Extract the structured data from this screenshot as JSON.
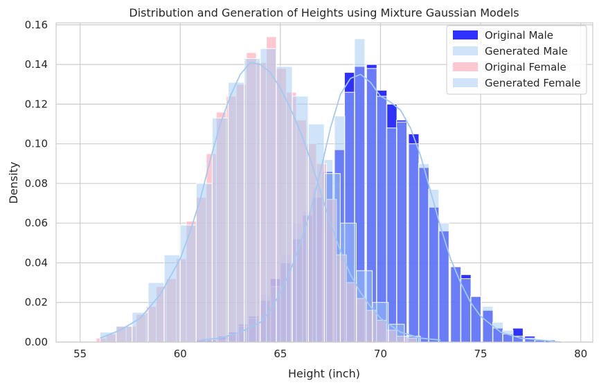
{
  "chart_data": {
    "type": "histogram",
    "title": "Distribution and Generation of Heights using Mixture Gaussian Models",
    "xlabel": "Height (inch)",
    "ylabel": "Density",
    "xlim": [
      53.8,
      80.6
    ],
    "ylim": [
      0,
      0.161
    ],
    "xticks": [
      55,
      60,
      65,
      70,
      75,
      80
    ],
    "yticks": [
      0.0,
      0.02,
      0.04,
      0.06,
      0.08,
      0.1,
      0.12,
      0.14,
      0.16
    ],
    "ytick_labels": [
      "0.00",
      "0.02",
      "0.04",
      "0.06",
      "0.08",
      "0.10",
      "0.12",
      "0.14",
      "0.16"
    ],
    "grid": true,
    "legend_position": "top-right",
    "legend": [
      {
        "label": "Original Male",
        "series": "original_male"
      },
      {
        "label": "Generated Male",
        "series": "generated_male"
      },
      {
        "label": "Original Female",
        "series": "original_female"
      },
      {
        "label": "Generated Female",
        "series": "generated_female"
      }
    ],
    "colors": {
      "original_male": "#1a1aff",
      "generated_male": "#a1c9f4",
      "original_female": "#ffb6c1",
      "generated_female": "#a1c9f4",
      "kde_line": "#a1c9f4",
      "grid": "#cccccc",
      "frame": "#cccccc"
    },
    "series": [
      {
        "name": "Original Male",
        "key": "original_male",
        "bin_width": 0.52,
        "bins": [
          [
            60.3,
            0.0
          ],
          [
            60.8,
            0.001
          ],
          [
            61.3,
            0.001
          ],
          [
            61.9,
            0.003
          ],
          [
            62.4,
            0.005
          ],
          [
            62.9,
            0.009
          ],
          [
            63.4,
            0.013
          ],
          [
            64.0,
            0.021
          ],
          [
            64.5,
            0.032
          ],
          [
            65.0,
            0.04
          ],
          [
            65.6,
            0.052
          ],
          [
            66.1,
            0.064
          ],
          [
            66.6,
            0.073
          ],
          [
            67.1,
            0.086
          ],
          [
            67.7,
            0.097
          ],
          [
            68.2,
            0.136
          ],
          [
            68.7,
            0.139
          ],
          [
            69.3,
            0.14
          ],
          [
            69.8,
            0.127
          ],
          [
            70.3,
            0.12
          ],
          [
            70.8,
            0.112
          ],
          [
            71.4,
            0.105
          ],
          [
            71.9,
            0.088
          ],
          [
            72.4,
            0.068
          ],
          [
            72.9,
            0.056
          ],
          [
            73.5,
            0.038
          ],
          [
            74.0,
            0.034
          ],
          [
            74.5,
            0.023
          ],
          [
            75.1,
            0.016
          ],
          [
            75.6,
            0.007
          ],
          [
            76.1,
            0.004
          ],
          [
            76.6,
            0.007
          ],
          [
            77.2,
            0.003
          ],
          [
            77.7,
            0.001
          ],
          [
            78.2,
            0.001
          ]
        ]
      },
      {
        "name": "Generated Male",
        "key": "generated_male",
        "bin_width": 0.52,
        "bins": [
          [
            61.9,
            0.001
          ],
          [
            62.4,
            0.004
          ],
          [
            62.9,
            0.008
          ],
          [
            63.4,
            0.012
          ],
          [
            64.0,
            0.024
          ],
          [
            64.5,
            0.028
          ],
          [
            65.0,
            0.044
          ],
          [
            65.6,
            0.06
          ],
          [
            66.1,
            0.066
          ],
          [
            66.6,
            0.078
          ],
          [
            67.1,
            0.092
          ],
          [
            67.7,
            0.114
          ],
          [
            68.2,
            0.126
          ],
          [
            68.7,
            0.153
          ],
          [
            69.3,
            0.138
          ],
          [
            69.8,
            0.124
          ],
          [
            70.3,
            0.108
          ],
          [
            70.8,
            0.111
          ],
          [
            71.4,
            0.1
          ],
          [
            71.9,
            0.09
          ],
          [
            72.4,
            0.077
          ],
          [
            72.9,
            0.06
          ],
          [
            73.5,
            0.038
          ],
          [
            74.0,
            0.032
          ],
          [
            74.5,
            0.023
          ],
          [
            75.1,
            0.018
          ],
          [
            75.6,
            0.01
          ],
          [
            76.1,
            0.006
          ],
          [
            76.6,
            0.003
          ],
          [
            77.2,
            0.002
          ],
          [
            77.7,
            0.001
          ]
        ]
      },
      {
        "name": "Original Female",
        "key": "original_female",
        "bin_width": 0.5,
        "bins": [
          [
            55.8,
            0.002
          ],
          [
            56.3,
            0.004
          ],
          [
            56.8,
            0.008
          ],
          [
            57.3,
            0.008
          ],
          [
            57.8,
            0.014
          ],
          [
            58.3,
            0.018
          ],
          [
            58.8,
            0.028
          ],
          [
            59.3,
            0.032
          ],
          [
            59.8,
            0.042
          ],
          [
            60.3,
            0.061
          ],
          [
            60.8,
            0.073
          ],
          [
            61.3,
            0.095
          ],
          [
            61.8,
            0.116
          ],
          [
            62.3,
            0.124
          ],
          [
            62.8,
            0.13
          ],
          [
            63.3,
            0.146
          ],
          [
            63.8,
            0.141
          ],
          [
            64.3,
            0.154
          ],
          [
            64.8,
            0.138
          ],
          [
            65.3,
            0.126
          ],
          [
            65.8,
            0.112
          ],
          [
            66.3,
            0.1
          ],
          [
            66.8,
            0.09
          ],
          [
            67.3,
            0.072
          ],
          [
            67.8,
            0.044
          ],
          [
            68.3,
            0.03
          ],
          [
            68.8,
            0.022
          ],
          [
            69.3,
            0.016
          ],
          [
            69.8,
            0.011
          ],
          [
            70.3,
            0.006
          ],
          [
            70.8,
            0.003
          ],
          [
            71.3,
            0.002
          ]
        ]
      },
      {
        "name": "Generated Female",
        "key": "generated_female",
        "bin_width": 0.79,
        "bins": [
          [
            56.0,
            0.005
          ],
          [
            56.8,
            0.008
          ],
          [
            57.6,
            0.015
          ],
          [
            58.4,
            0.03
          ],
          [
            59.2,
            0.044
          ],
          [
            60.0,
            0.059
          ],
          [
            60.8,
            0.08
          ],
          [
            61.6,
            0.113
          ],
          [
            62.4,
            0.131
          ],
          [
            63.2,
            0.143
          ],
          [
            64.0,
            0.148
          ],
          [
            64.8,
            0.139
          ],
          [
            65.6,
            0.124
          ],
          [
            66.4,
            0.11
          ],
          [
            67.2,
            0.085
          ],
          [
            68.0,
            0.06
          ],
          [
            68.8,
            0.036
          ],
          [
            69.6,
            0.02
          ],
          [
            70.4,
            0.009
          ],
          [
            71.2,
            0.003
          ]
        ]
      }
    ],
    "kde": [
      {
        "name": "Generated Female KDE",
        "points": [
          [
            56.0,
            0.002
          ],
          [
            57.0,
            0.006
          ],
          [
            58.0,
            0.012
          ],
          [
            59.0,
            0.024
          ],
          [
            60.0,
            0.042
          ],
          [
            60.5,
            0.056
          ],
          [
            61.0,
            0.072
          ],
          [
            61.5,
            0.092
          ],
          [
            62.0,
            0.11
          ],
          [
            62.5,
            0.124
          ],
          [
            63.0,
            0.135
          ],
          [
            63.5,
            0.141
          ],
          [
            64.0,
            0.14
          ],
          [
            64.5,
            0.136
          ],
          [
            65.0,
            0.128
          ],
          [
            65.5,
            0.118
          ],
          [
            66.0,
            0.106
          ],
          [
            66.5,
            0.092
          ],
          [
            67.0,
            0.076
          ],
          [
            67.5,
            0.06
          ],
          [
            68.0,
            0.046
          ],
          [
            68.5,
            0.034
          ],
          [
            69.0,
            0.025
          ],
          [
            69.5,
            0.018
          ],
          [
            70.0,
            0.012
          ],
          [
            71.0,
            0.005
          ],
          [
            72.0,
            0.002
          ],
          [
            73.0,
            0.001
          ]
        ]
      },
      {
        "name": "Generated Male KDE",
        "points": [
          [
            61.0,
            0.001
          ],
          [
            62.0,
            0.002
          ],
          [
            63.0,
            0.005
          ],
          [
            64.0,
            0.01
          ],
          [
            64.5,
            0.016
          ],
          [
            65.0,
            0.025
          ],
          [
            65.5,
            0.036
          ],
          [
            66.0,
            0.05
          ],
          [
            66.5,
            0.066
          ],
          [
            67.0,
            0.086
          ],
          [
            67.5,
            0.108
          ],
          [
            68.0,
            0.125
          ],
          [
            68.5,
            0.133
          ],
          [
            69.0,
            0.135
          ],
          [
            69.5,
            0.131
          ],
          [
            70.0,
            0.124
          ],
          [
            70.5,
            0.121
          ],
          [
            71.0,
            0.117
          ],
          [
            71.5,
            0.108
          ],
          [
            72.0,
            0.094
          ],
          [
            72.5,
            0.076
          ],
          [
            73.0,
            0.058
          ],
          [
            73.5,
            0.042
          ],
          [
            74.0,
            0.03
          ],
          [
            74.5,
            0.02
          ],
          [
            75.0,
            0.013
          ],
          [
            76.0,
            0.005
          ],
          [
            77.0,
            0.002
          ],
          [
            78.0,
            0.001
          ],
          [
            79.0,
            0.0
          ]
        ]
      }
    ]
  }
}
